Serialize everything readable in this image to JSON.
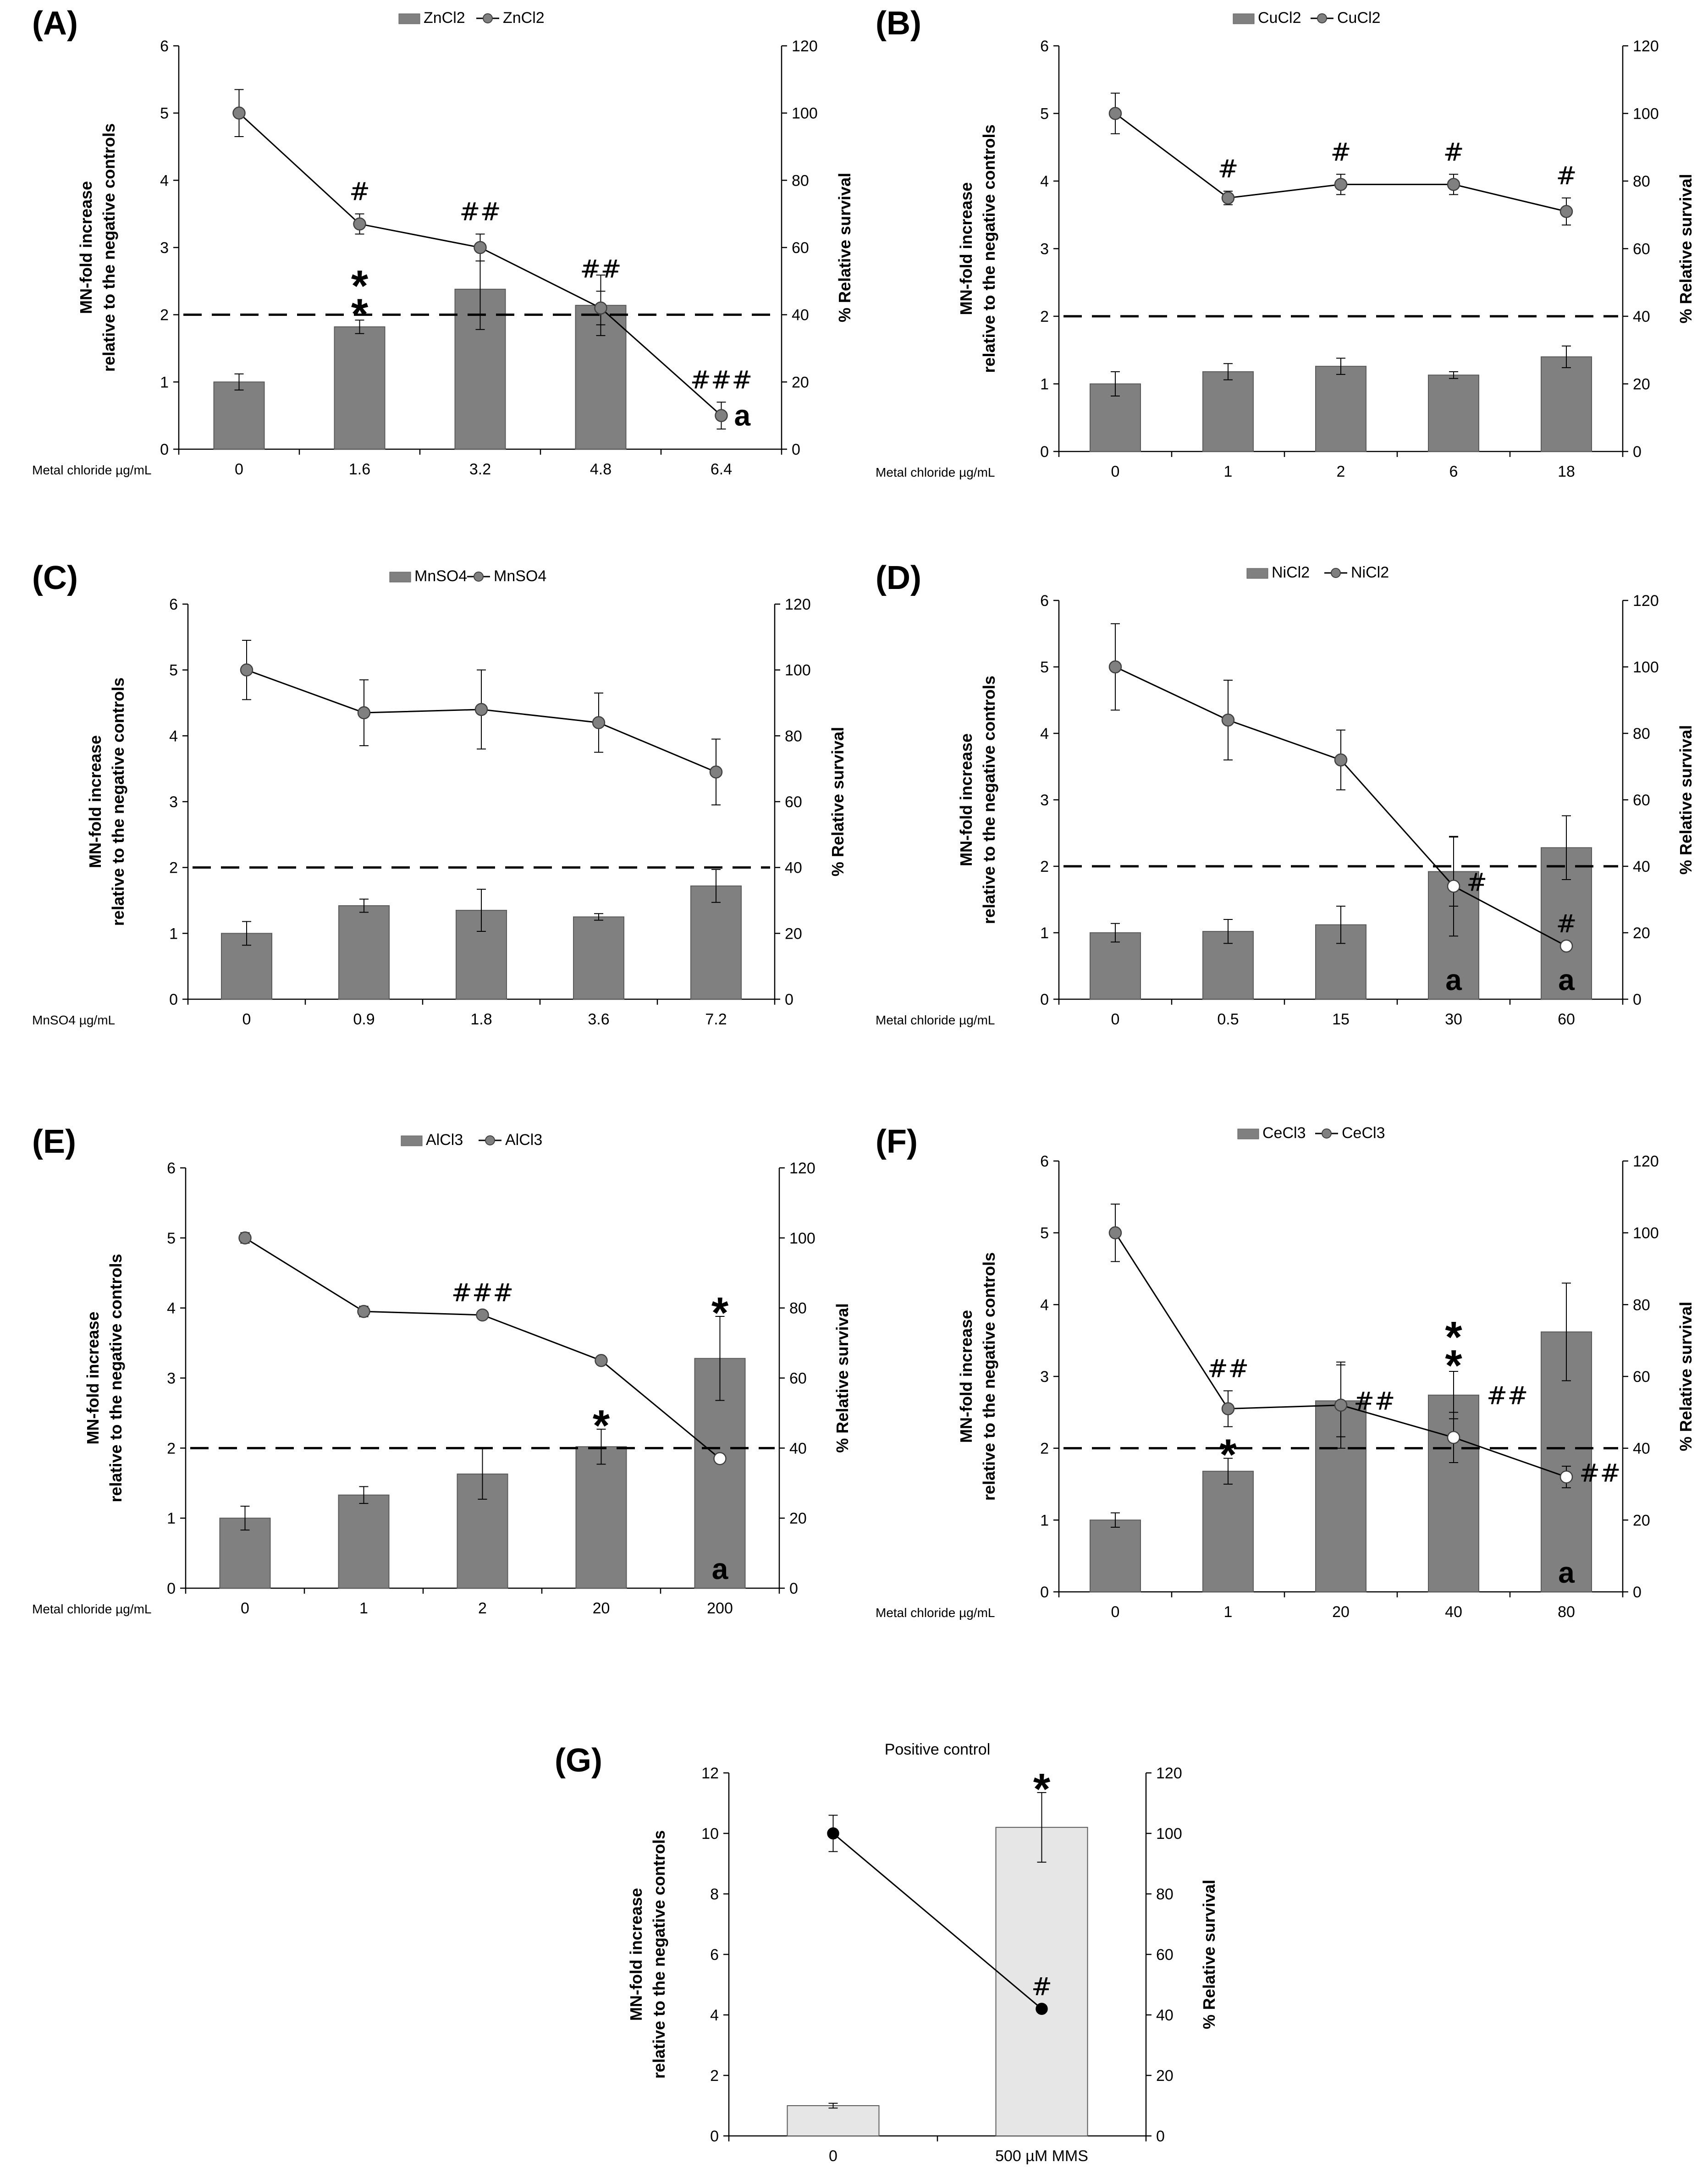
{
  "figure": {
    "panels": [
      "A",
      "B",
      "C",
      "D",
      "E",
      "F",
      "G"
    ]
  },
  "colors": {
    "bar": "#808080",
    "bar_stroke": "#5a5a5a",
    "dot": "#808080",
    "dot_stroke": "#404040",
    "line": "#000000",
    "dashed": "#000000",
    "positive_bar": "#e6e6e6",
    "positive_dot": "#000000"
  },
  "chart_data": [
    {
      "panel": "(A)",
      "type": "bar",
      "legend": [
        "ZnCl2",
        "ZnCl2"
      ],
      "x_prefix": "Metal chloride µg/mL",
      "categories": [
        "0",
        "1.6",
        "3.2",
        "4.8",
        "6.4"
      ],
      "ylabel_left": [
        "MN-fold increase",
        "relative to the negative controls"
      ],
      "ylabel_right": "% Relative survival",
      "ylim_left": [
        0,
        6
      ],
      "yticks_left": [
        0,
        1,
        2,
        3,
        4,
        5,
        6
      ],
      "ylim_right": [
        0,
        120
      ],
      "yticks_right": [
        0,
        20,
        40,
        60,
        80,
        100,
        120
      ],
      "threshold": 2,
      "series": [
        {
          "name": "ZnCl2 (bars, MN-fold)",
          "values": [
            1.0,
            1.82,
            2.38,
            2.14,
            null
          ],
          "errors": [
            0.12,
            0.1,
            0.6,
            0.45,
            null
          ]
        },
        {
          "name": "ZnCl2 (line, % survival)",
          "values": [
            100,
            67,
            60,
            42,
            10
          ],
          "errors": [
            7,
            3,
            4,
            5,
            4
          ],
          "open": [
            false,
            false,
            false,
            false,
            false
          ]
        }
      ],
      "annotations": [
        {
          "cat": 1,
          "text": "#",
          "style": "hash",
          "ref": "line",
          "offset": 30
        },
        {
          "cat": 1,
          "text": "**",
          "style": "star2",
          "ref": "bar",
          "offset": 20
        },
        {
          "cat": 2,
          "text": "##",
          "style": "hash",
          "ref": "line",
          "offset": 30
        },
        {
          "cat": 3,
          "text": "##",
          "style": "hash",
          "ref": "line",
          "offset": 30
        },
        {
          "cat": 4,
          "text": "###",
          "style": "hash",
          "ref": "line",
          "offset": 30
        },
        {
          "cat": 4,
          "text": "a",
          "style": "a-right",
          "ref": "line",
          "offset": 0
        }
      ]
    },
    {
      "panel": "(B)",
      "type": "bar",
      "legend": [
        "CuCl2",
        "CuCl2"
      ],
      "x_prefix": "Metal chloride µg/mL",
      "categories": [
        "0",
        "1",
        "2",
        "6",
        "18"
      ],
      "ylabel_left": [
        "MN-fold increase",
        "relative to the negative controls"
      ],
      "ylabel_right": "% Relative survival",
      "ylim_left": [
        0,
        6
      ],
      "yticks_left": [
        0,
        1,
        2,
        3,
        4,
        5,
        6
      ],
      "ylim_right": [
        0,
        120
      ],
      "yticks_right": [
        0,
        20,
        40,
        60,
        80,
        100,
        120
      ],
      "threshold": 2,
      "series": [
        {
          "name": "CuCl2 (bars, MN-fold)",
          "values": [
            1.0,
            1.18,
            1.26,
            1.13,
            1.4
          ],
          "errors": [
            0.18,
            0.12,
            0.12,
            0.05,
            0.16
          ]
        },
        {
          "name": "CuCl2 (line, % survival)",
          "values": [
            100,
            75,
            79,
            79,
            71
          ],
          "errors": [
            6,
            2,
            3,
            3,
            4
          ],
          "open": [
            false,
            false,
            false,
            false,
            false
          ]
        }
      ],
      "annotations": [
        {
          "cat": 1,
          "text": "#",
          "style": "hash",
          "ref": "line",
          "offset": 30
        },
        {
          "cat": 2,
          "text": "#",
          "style": "hash",
          "ref": "line",
          "offset": 30
        },
        {
          "cat": 3,
          "text": "#",
          "style": "hash",
          "ref": "line",
          "offset": 30
        },
        {
          "cat": 4,
          "text": "#",
          "style": "hash",
          "ref": "line",
          "offset": 30
        }
      ]
    },
    {
      "panel": "(C)",
      "type": "bar",
      "legend": [
        "MnSO4",
        "MnSO4"
      ],
      "x_prefix": "MnSO4 µg/mL",
      "categories": [
        "0",
        "0.9",
        "1.8",
        "3.6",
        "7.2"
      ],
      "ylabel_left": [
        "MN-fold increase",
        "relative to the negative controls"
      ],
      "ylabel_right": "% Relative survival",
      "ylim_left": [
        0,
        6
      ],
      "yticks_left": [
        0,
        1,
        2,
        3,
        4,
        5,
        6
      ],
      "ylim_right": [
        0,
        120
      ],
      "yticks_right": [
        0,
        20,
        40,
        60,
        80,
        100,
        120
      ],
      "threshold": 2,
      "series": [
        {
          "name": "MnSO4 (bars, MN-fold)",
          "values": [
            1.0,
            1.42,
            1.35,
            1.25,
            1.72
          ],
          "errors": [
            0.18,
            0.1,
            0.32,
            0.05,
            0.25
          ]
        },
        {
          "name": "MnSO4 (line, % survival)",
          "values": [
            100,
            87,
            88,
            84,
            69
          ],
          "errors": [
            9,
            10,
            12,
            9,
            10
          ],
          "open": [
            false,
            false,
            false,
            false,
            false
          ]
        }
      ],
      "annotations": []
    },
    {
      "panel": "(D)",
      "type": "bar",
      "legend": [
        "NiCl2",
        "NiCl2"
      ],
      "x_prefix": "Metal chloride µg/mL",
      "categories": [
        "0",
        "0.5",
        "15",
        "30",
        "60"
      ],
      "ylabel_left": [
        "MN-fold increase",
        "relative to the negative controls"
      ],
      "ylabel_right": "% Relative survival",
      "ylim_left": [
        0,
        6
      ],
      "yticks_left": [
        0,
        1,
        2,
        3,
        4,
        5,
        6
      ],
      "ylim_right": [
        0,
        120
      ],
      "yticks_right": [
        0,
        20,
        40,
        60,
        80,
        100,
        120
      ],
      "threshold": 2,
      "series": [
        {
          "name": "NiCl2 (bars, MN-fold)",
          "values": [
            1.0,
            1.02,
            1.12,
            1.92,
            2.28
          ],
          "errors": [
            0.14,
            0.18,
            0.28,
            0.52,
            0.48
          ]
        },
        {
          "name": "NiCl2 (line, % survival)",
          "values": [
            100,
            84,
            72,
            34,
            16
          ],
          "errors": [
            13,
            12,
            9,
            15,
            0
          ],
          "open": [
            false,
            false,
            false,
            true,
            true
          ]
        }
      ],
      "annotations": [
        {
          "cat": 3,
          "text": "#",
          "style": "hash-right",
          "ref": "line",
          "offset": 0
        },
        {
          "cat": 4,
          "text": "#",
          "style": "hash",
          "ref": "line",
          "offset": 30
        },
        {
          "cat": 3,
          "text": "a",
          "style": "a-base",
          "ref": "base",
          "offset": 0
        },
        {
          "cat": 4,
          "text": "a",
          "style": "a-base",
          "ref": "base",
          "offset": 0
        }
      ]
    },
    {
      "panel": "(E)",
      "type": "bar",
      "legend": [
        "AlCl3",
        "AlCl3"
      ],
      "x_prefix": "Metal chloride µg/mL",
      "categories": [
        "0",
        "1",
        "2",
        "20",
        "200"
      ],
      "ylabel_left": [
        "MN-fold increase",
        "relative to the negative controls"
      ],
      "ylabel_right": "% Relative survival",
      "ylim_left": [
        0,
        6
      ],
      "yticks_left": [
        0,
        1,
        2,
        3,
        4,
        5,
        6
      ],
      "ylim_right": [
        0,
        120
      ],
      "yticks_right": [
        0,
        20,
        40,
        60,
        80,
        100,
        120
      ],
      "threshold": 2,
      "series": [
        {
          "name": "AlCl3 (bars, MN-fold)",
          "values": [
            1.0,
            1.33,
            1.63,
            2.02,
            3.28
          ],
          "errors": [
            0.17,
            0.12,
            0.36,
            0.25,
            0.6
          ]
        },
        {
          "name": "AlCl3 (line, % survival)",
          "values": [
            100,
            79,
            78,
            65,
            37
          ],
          "errors": [
            1.5,
            1.5,
            0,
            0,
            0
          ],
          "open": [
            false,
            false,
            false,
            false,
            true
          ]
        }
      ],
      "annotations": [
        {
          "cat": 2,
          "text": "###",
          "style": "hash",
          "ref": "line",
          "offset": 30
        },
        {
          "cat": 3,
          "text": "*",
          "style": "star",
          "ref": "bar",
          "offset": 20
        },
        {
          "cat": 4,
          "text": "*",
          "style": "star",
          "ref": "bar",
          "offset": 20
        },
        {
          "cat": 4,
          "text": "a",
          "style": "a-base",
          "ref": "base",
          "offset": 0
        }
      ]
    },
    {
      "panel": "(F)",
      "type": "bar",
      "legend": [
        "CeCl3",
        "CeCl3"
      ],
      "x_prefix": "Metal chloride µg/mL",
      "categories": [
        "0",
        "1",
        "20",
        "40",
        "80"
      ],
      "ylabel_left": [
        "MN-fold increase",
        "relative to the negative controls"
      ],
      "ylabel_right": "% Relative survival",
      "ylim_left": [
        0,
        6
      ],
      "yticks_left": [
        0,
        1,
        2,
        3,
        4,
        5,
        6
      ],
      "ylim_right": [
        0,
        120
      ],
      "yticks_right": [
        0,
        20,
        40,
        60,
        80,
        100,
        120
      ],
      "threshold": 2,
      "series": [
        {
          "name": "CeCl3 (bars, MN-fold)",
          "values": [
            1.0,
            1.68,
            2.66,
            2.74,
            3.62
          ],
          "errors": [
            0.1,
            0.18,
            0.5,
            0.33,
            0.68
          ]
        },
        {
          "name": "CeCl3 (line, % survival)",
          "values": [
            100,
            51,
            52,
            43,
            32
          ],
          "errors": [
            8,
            5,
            12,
            7,
            3
          ],
          "open": [
            false,
            false,
            false,
            true,
            true
          ]
        }
      ],
      "annotations": [
        {
          "cat": 1,
          "text": "##",
          "style": "hash",
          "ref": "line",
          "offset": 30
        },
        {
          "cat": 1,
          "text": "*",
          "style": "star",
          "ref": "bar",
          "offset": 20
        },
        {
          "cat": 2,
          "text": "##",
          "style": "hash-right",
          "ref": "line",
          "offset": 0
        },
        {
          "cat": 3,
          "text": "**",
          "style": "star2",
          "ref": "bar",
          "offset": 20
        },
        {
          "cat": 3,
          "text": "##",
          "style": "hash-right-bar",
          "ref": "bar",
          "offset": 0
        },
        {
          "cat": 4,
          "text": "##",
          "style": "hash-right",
          "ref": "line",
          "offset": 0
        },
        {
          "cat": 4,
          "text": "a",
          "style": "a-base",
          "ref": "base",
          "offset": 0
        }
      ]
    },
    {
      "panel": "(G)",
      "type": "bar",
      "title": "Positive control",
      "categories": [
        "0",
        "500 µM MMS"
      ],
      "ylabel_left": [
        "MN-fold increase",
        "relative to the negative controls"
      ],
      "ylabel_right": "% Relative survival",
      "ylim_left": [
        0,
        12
      ],
      "yticks_left": [
        0,
        2,
        4,
        6,
        8,
        10,
        12
      ],
      "ylim_right": [
        0,
        120
      ],
      "yticks_right": [
        0,
        20,
        40,
        60,
        80,
        100,
        120
      ],
      "series": [
        {
          "name": "MMS (bars, MN-fold)",
          "values": [
            1.0,
            10.2
          ],
          "errors": [
            0.08,
            1.15
          ]
        },
        {
          "name": "MMS (line, % survival)",
          "values": [
            100,
            42
          ],
          "errors": [
            6,
            0
          ],
          "open": [
            false,
            false
          ]
        }
      ],
      "annotations": [
        {
          "cat": 1,
          "text": "*",
          "style": "star",
          "ref": "bar",
          "offset": 20
        },
        {
          "cat": 1,
          "text": "#",
          "style": "hash",
          "ref": "line",
          "offset": 30
        }
      ]
    }
  ]
}
